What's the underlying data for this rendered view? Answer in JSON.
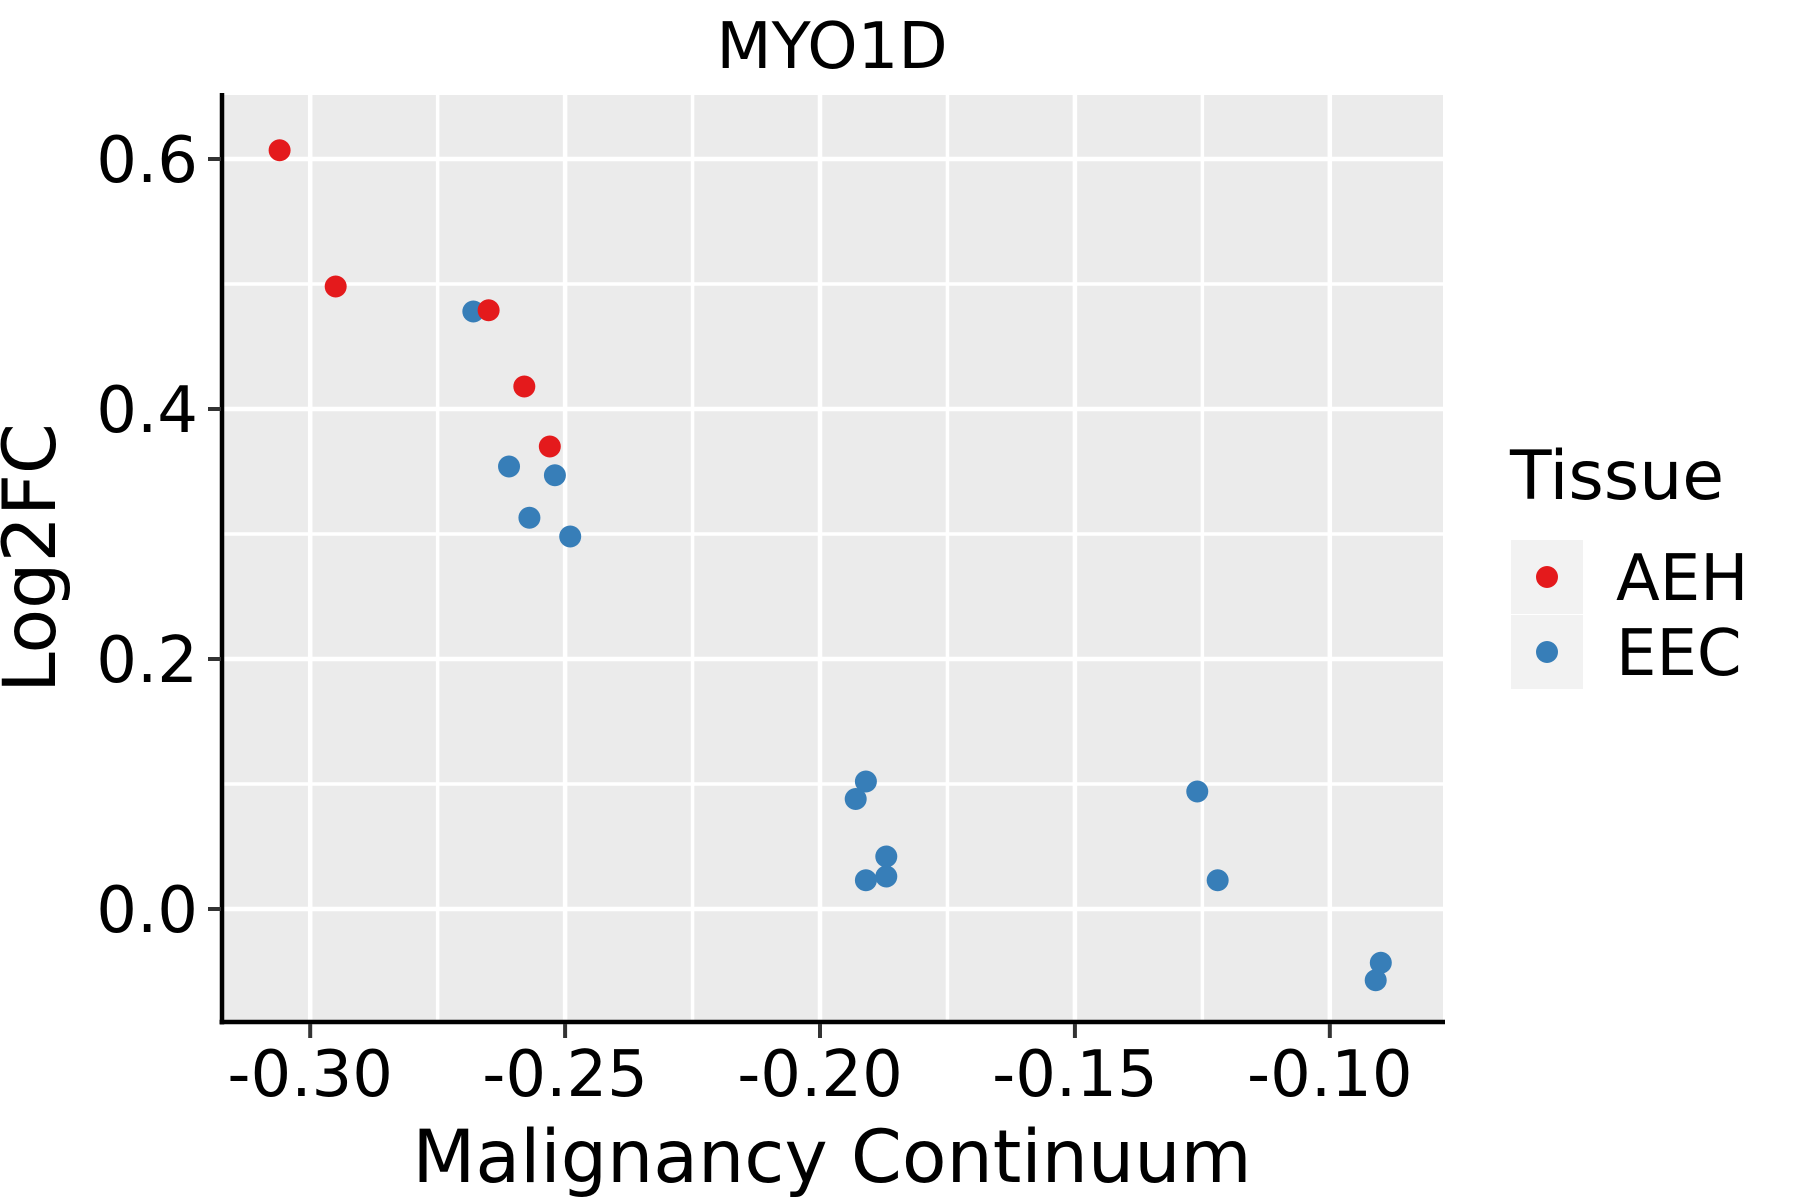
{
  "title": "MYO1D",
  "x_axis": {
    "label": "Malignancy Continuum",
    "tick_labels": [
      "-0.30",
      "-0.25",
      "-0.20",
      "-0.15",
      "-0.10"
    ],
    "tick_values": [
      -0.3,
      -0.25,
      -0.2,
      -0.15,
      -0.1
    ]
  },
  "y_axis": {
    "label": "Log2FC",
    "tick_labels": [
      "0.0",
      "0.2",
      "0.4",
      "0.6"
    ],
    "tick_values": [
      0.0,
      0.2,
      0.4,
      0.6
    ]
  },
  "legend": {
    "title": "Tissue",
    "items": [
      {
        "label": "AEH",
        "color": "#E41A1C"
      },
      {
        "label": "EEC",
        "color": "#377EB8"
      }
    ]
  },
  "colors": {
    "panel_background": "#EBEBEB",
    "gridline": "#FFFFFF",
    "axis_line": "#000000",
    "tick_mark": "#333333",
    "legend_key": "#F2F2F2",
    "aeh": "#E41A1C",
    "eec": "#377EB8"
  },
  "chart_data": {
    "type": "scatter",
    "title": "MYO1D",
    "xlabel": "Malignancy Continuum",
    "ylabel": "Log2FC",
    "xlim": [
      -0.3173,
      -0.0778
    ],
    "ylim": [
      -0.0904,
      0.6512
    ],
    "x_major_ticks": [
      -0.3,
      -0.25,
      -0.2,
      -0.15,
      -0.1
    ],
    "x_gridlines": [
      -0.3,
      -0.275,
      -0.25,
      -0.225,
      -0.2,
      -0.175,
      -0.15,
      -0.125,
      -0.1
    ],
    "y_major_ticks": [
      0.0,
      0.2,
      0.4,
      0.6
    ],
    "y_gridlines": [
      0.0,
      0.1,
      0.2,
      0.3,
      0.4,
      0.5,
      0.6
    ],
    "grid": "on",
    "legend_position": "right",
    "point_radius": 11,
    "series": [
      {
        "name": "EEC",
        "color": "#377EB8",
        "points": [
          [
            -0.268,
            0.478
          ],
          [
            -0.261,
            0.354
          ],
          [
            -0.252,
            0.347
          ],
          [
            -0.257,
            0.313
          ],
          [
            -0.249,
            0.298
          ],
          [
            -0.191,
            0.102
          ],
          [
            -0.193,
            0.088
          ],
          [
            -0.187,
            0.042
          ],
          [
            -0.187,
            0.026
          ],
          [
            -0.191,
            0.023
          ],
          [
            -0.126,
            0.094
          ],
          [
            -0.122,
            0.023
          ],
          [
            -0.09,
            -0.043
          ],
          [
            -0.091,
            -0.057
          ]
        ]
      },
      {
        "name": "AEH",
        "color": "#E41A1C",
        "points": [
          [
            -0.306,
            0.607
          ],
          [
            -0.295,
            0.498
          ],
          [
            -0.265,
            0.479
          ],
          [
            -0.258,
            0.418
          ],
          [
            -0.253,
            0.37
          ]
        ]
      }
    ]
  }
}
